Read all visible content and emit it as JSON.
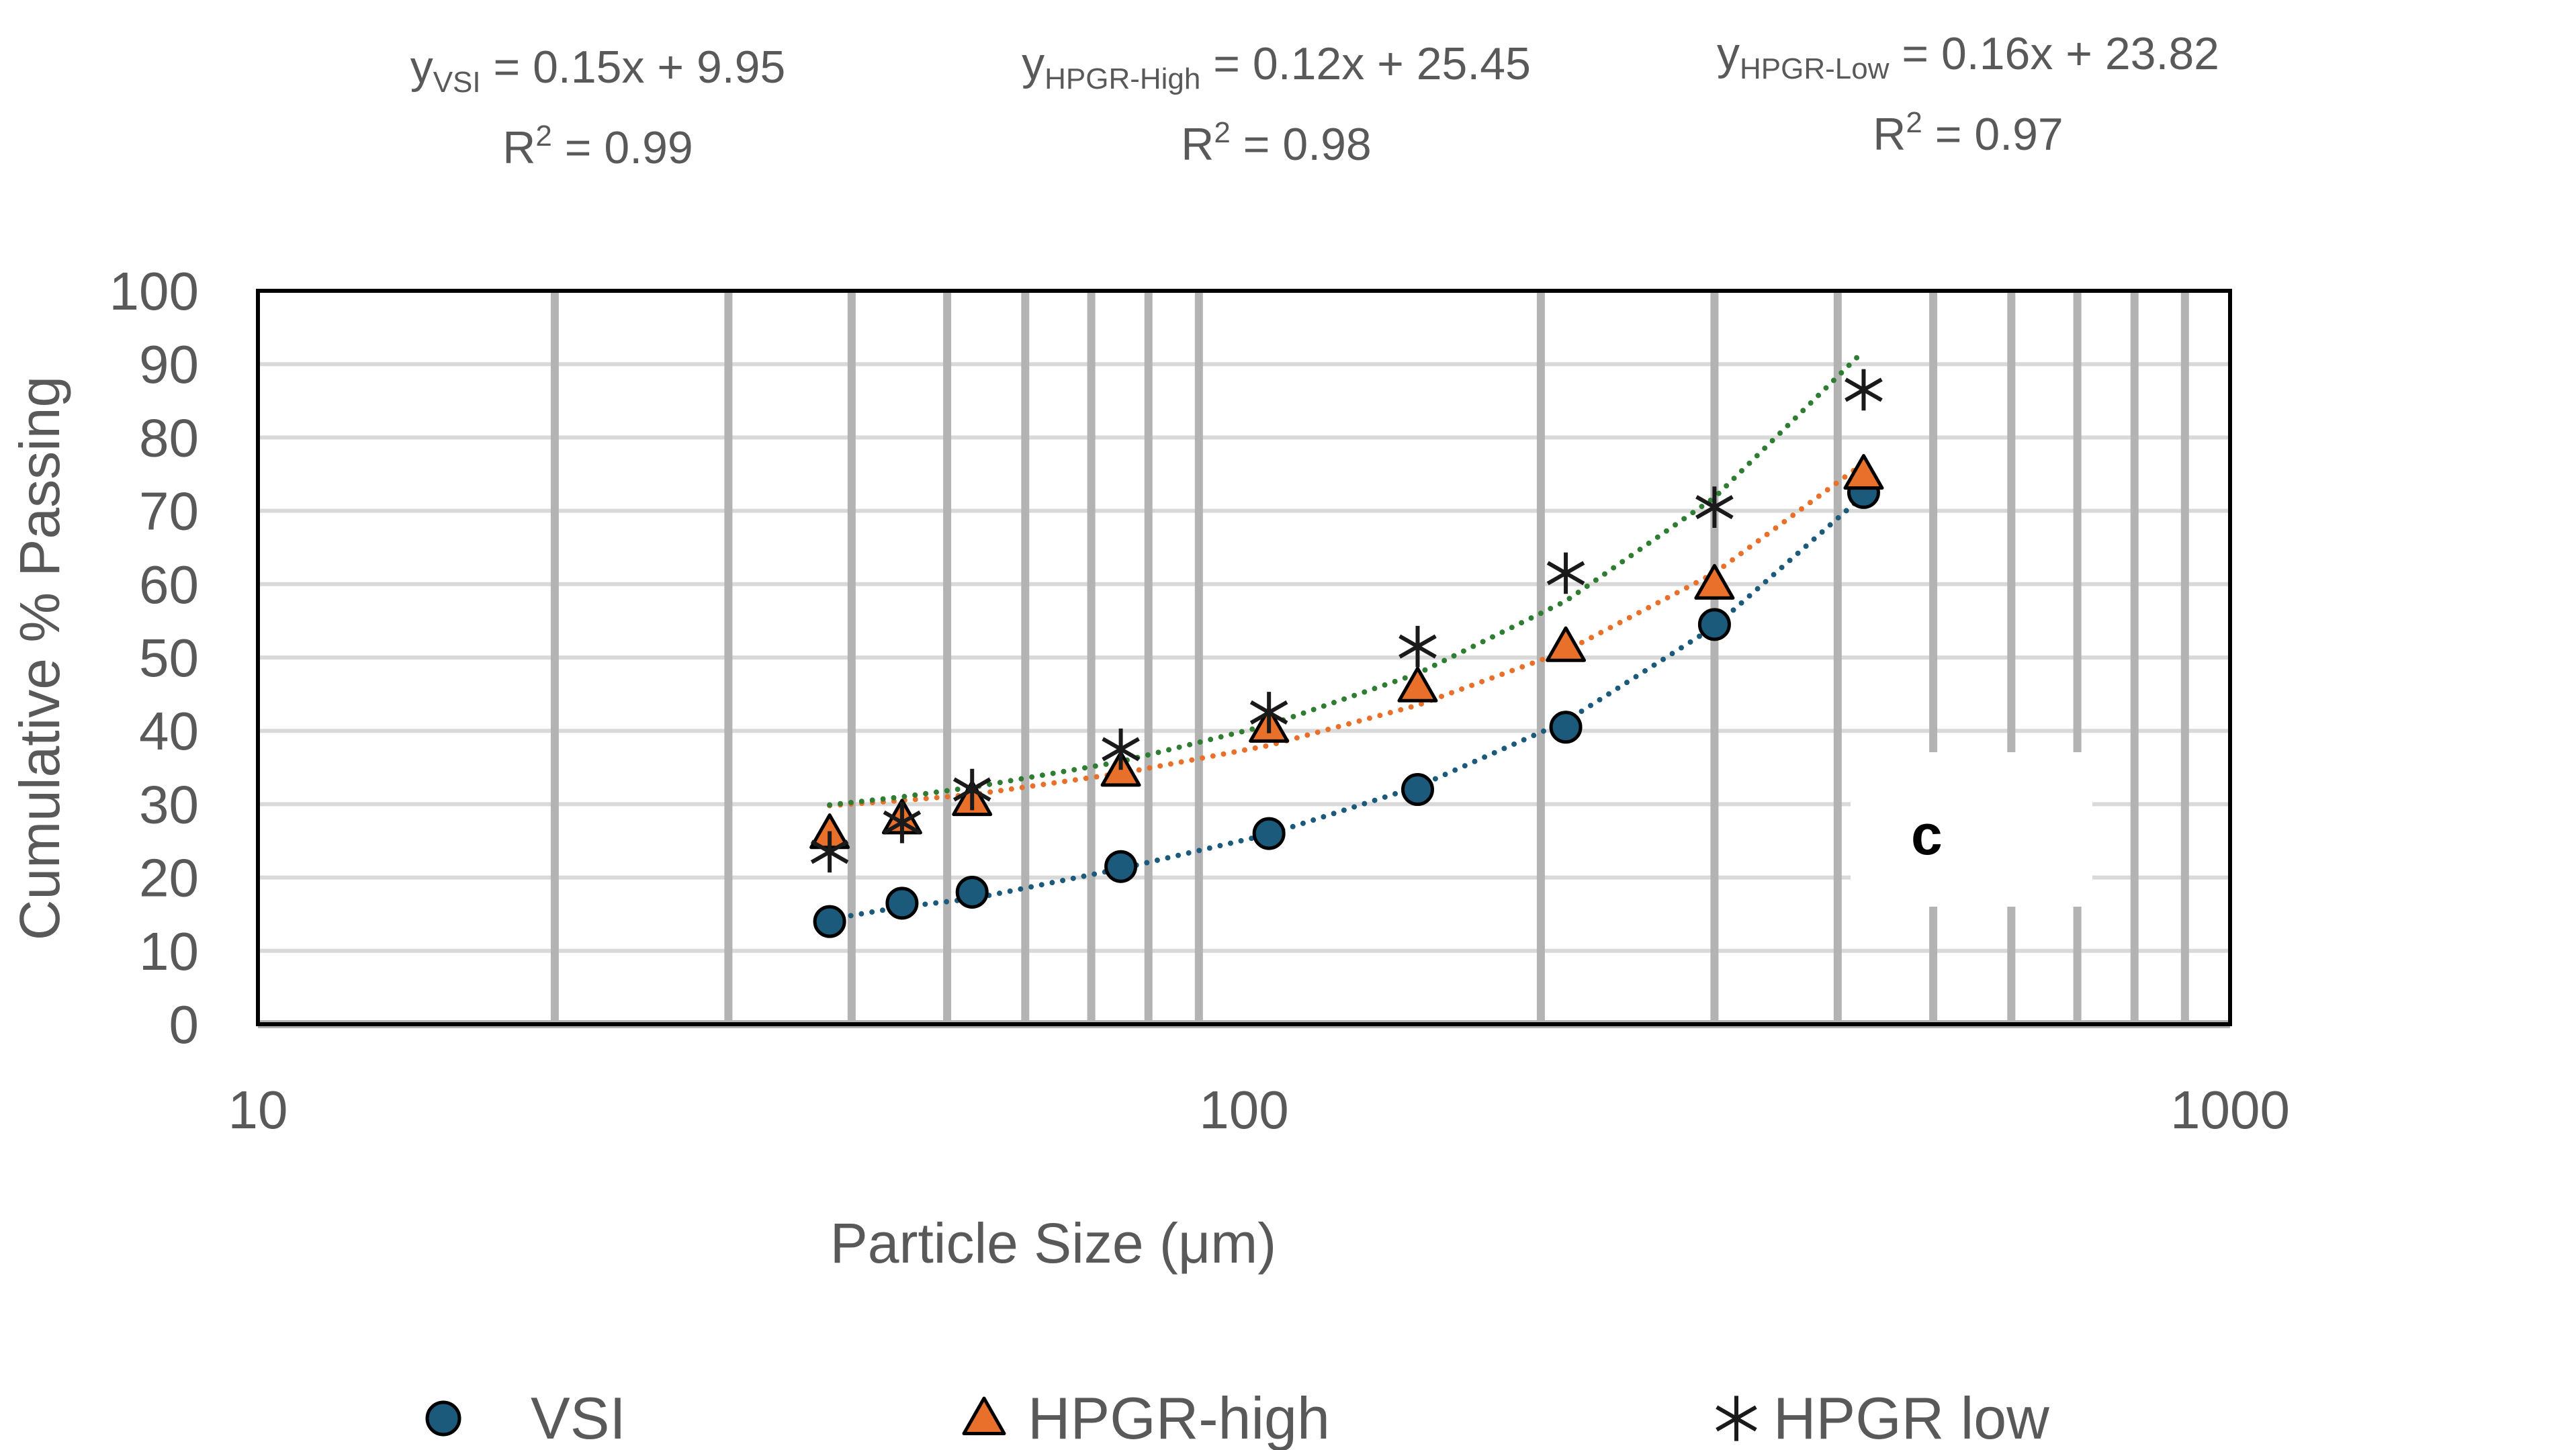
{
  "chart_data": {
    "type": "scatter",
    "title": "",
    "xlabel": "Particle Size (μm)",
    "ylabel": "Cumulative % Passing",
    "xscale": "log",
    "xlim": [
      10,
      1000
    ],
    "ylim": [
      0,
      100
    ],
    "yticks": [
      0,
      10,
      20,
      30,
      40,
      50,
      60,
      70,
      80,
      90,
      100
    ],
    "xticks": [
      10,
      100,
      1000
    ],
    "panel_label": "c",
    "legend_position": "bottom",
    "series": [
      {
        "name": "VSI",
        "marker": "circle",
        "color": "#1b5a7a",
        "trend_color": "#1b5a7a",
        "x": [
          38,
          45,
          53,
          75,
          106,
          150,
          212,
          300,
          425
        ],
        "y": [
          14,
          16.5,
          18,
          21.5,
          26,
          32,
          40.5,
          54.5,
          72.5
        ],
        "trend_y": [
          14.3,
          16.0,
          17.1,
          21.2,
          25.9,
          32.4,
          41.3,
          54.2,
          72.1
        ]
      },
      {
        "name": "HPGR-high",
        "marker": "triangle",
        "color": "#e8702a",
        "trend_color": "#e8702a",
        "x": [
          38,
          45,
          53,
          75,
          106,
          150,
          212,
          300,
          425
        ],
        "y": [
          26,
          28,
          30.5,
          34.5,
          40.5,
          46,
          51.5,
          60,
          75
        ],
        "trend_y": [
          29.8,
          30.5,
          31.3,
          34.2,
          38.0,
          43.5,
          50.9,
          61.5,
          76.5
        ]
      },
      {
        "name": "HPGR low",
        "marker": "asterisk",
        "color": "#1a1a1a",
        "trend_color": "#2e7d32",
        "x": [
          38,
          45,
          53,
          75,
          106,
          150,
          212,
          300,
          425
        ],
        "y": [
          23.5,
          27.5,
          32,
          37.5,
          42.5,
          51.5,
          61.5,
          70.5,
          86.5
        ],
        "trend_y": [
          29.9,
          31.0,
          32.3,
          35.8,
          40.8,
          47.8,
          57.7,
          71.8,
          91.8
        ]
      }
    ],
    "equations": [
      {
        "y_label": "y",
        "sub": "VSI",
        "rhs": " = 0.15x + 9.95",
        "r2_label": "R",
        "r2_sup": "2",
        "r2_value": " = 0.99"
      },
      {
        "y_label": "y",
        "sub": "HPGR-High",
        "rhs": " = 0.12x + 25.45",
        "r2_label": "R",
        "r2_sup": "2",
        "r2_value": " = 0.98"
      },
      {
        "y_label": "y",
        "sub": "HPGR-Low",
        "rhs": " = 0.16x + 23.82",
        "r2_label": "R",
        "r2_sup": "2",
        "r2_value": " = 0.97"
      }
    ]
  }
}
